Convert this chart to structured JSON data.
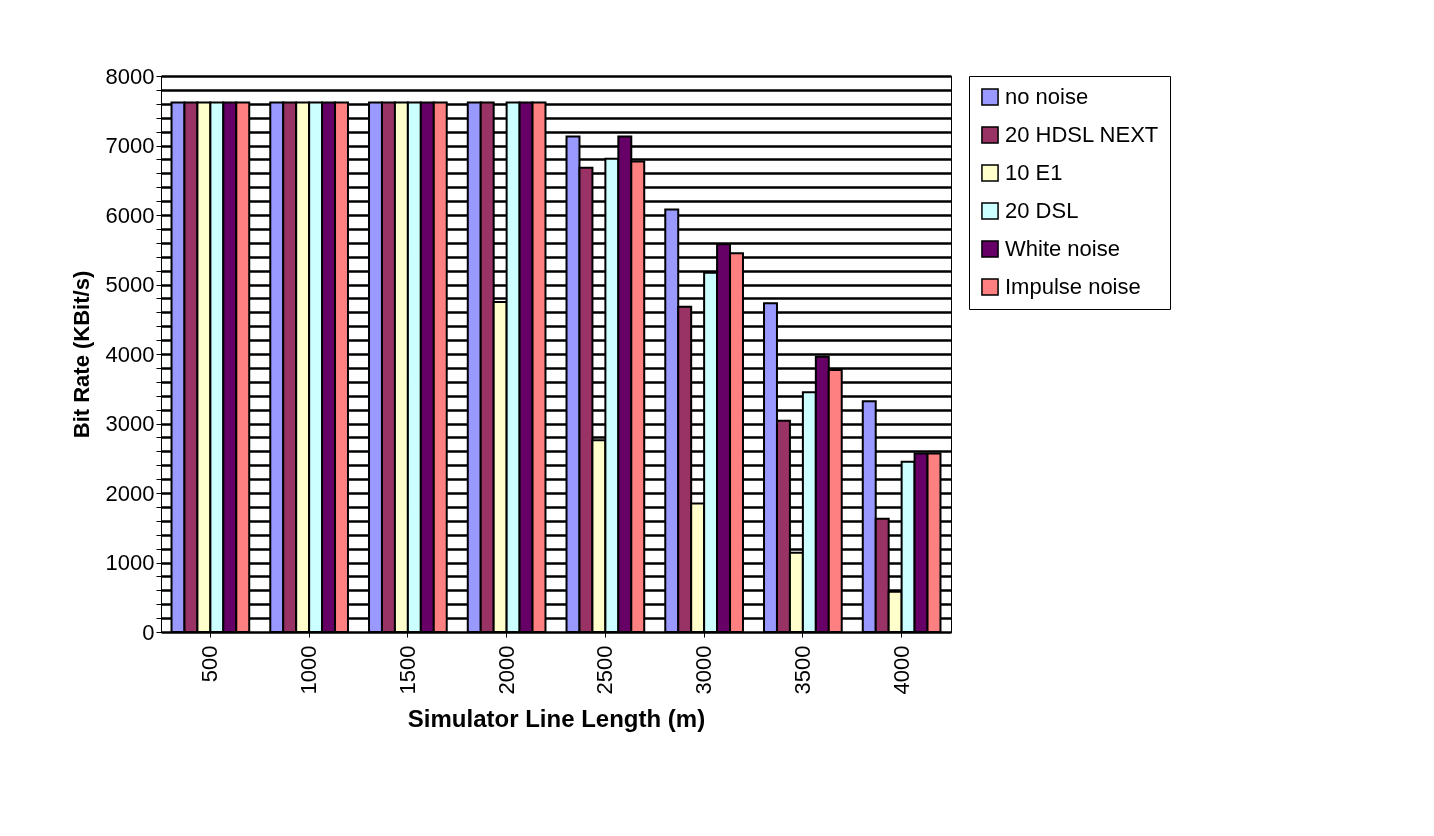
{
  "chart_data": {
    "type": "bar",
    "xlabel": "Simulator Line Length (m)",
    "ylabel": "Bit Rate (KBit/s)",
    "categories": [
      "500",
      "1000",
      "1500",
      "2000",
      "2500",
      "3000",
      "3500",
      "4000"
    ],
    "series": [
      {
        "name": "no noise",
        "color": "#9999ff",
        "values": [
          7620,
          7620,
          7620,
          7620,
          7130,
          6080,
          4730,
          3320
        ]
      },
      {
        "name": "20 HDSL NEXT",
        "color": "#993366",
        "values": [
          7620,
          7620,
          7620,
          7620,
          6680,
          4680,
          3040,
          1630
        ]
      },
      {
        "name": "10 E1",
        "color": "#ffffcc",
        "values": [
          7620,
          7620,
          7620,
          4750,
          2760,
          1850,
          1140,
          580
        ]
      },
      {
        "name": "20 DSL",
        "color": "#ccffff",
        "values": [
          7620,
          7620,
          7620,
          7620,
          6810,
          5170,
          3450,
          2450
        ]
      },
      {
        "name": "White noise",
        "color": "#660066",
        "values": [
          7620,
          7620,
          7620,
          7620,
          7130,
          5580,
          3960,
          2570
        ]
      },
      {
        "name": "Impulse noise",
        "color": "#ff8080",
        "values": [
          7620,
          7620,
          7620,
          7620,
          6770,
          5450,
          3770,
          2570
        ]
      }
    ],
    "ylim": [
      0,
      8000
    ],
    "yticks": [
      0,
      {
        "value": 200,
        "label": null
      },
      {
        "value": 400,
        "label": null
      },
      {
        "value": 600,
        "label": null
      },
      {
        "value": 800,
        "label": null
      },
      1000,
      {
        "value": 1200,
        "label": null
      },
      {
        "value": 1400,
        "label": null
      },
      {
        "value": 1600,
        "label": null
      },
      {
        "value": 1800,
        "label": null
      },
      2000,
      {
        "value": 2200,
        "label": null
      },
      {
        "value": 2400,
        "label": null
      },
      {
        "value": 2600,
        "label": null
      },
      {
        "value": 2800,
        "label": null
      },
      3000,
      {
        "value": 3200,
        "label": null
      },
      {
        "value": 3400,
        "label": null
      },
      {
        "value": 3600,
        "label": null
      },
      {
        "value": 3800,
        "label": null
      },
      4000,
      {
        "value": 4200,
        "label": null
      },
      {
        "value": 4400,
        "label": null
      },
      {
        "value": 4600,
        "label": null
      },
      {
        "value": 4800,
        "label": null
      },
      5000,
      {
        "value": 5200,
        "label": null
      },
      {
        "value": 5400,
        "label": null
      },
      {
        "value": 5600,
        "label": null
      },
      {
        "value": 5800,
        "label": null
      },
      6000,
      {
        "value": 6200,
        "label": null
      },
      {
        "value": 6400,
        "label": null
      },
      {
        "value": 6600,
        "label": null
      },
      {
        "value": 6800,
        "label": null
      },
      7000,
      {
        "value": 7200,
        "label": null
      },
      {
        "value": 7400,
        "label": null
      },
      {
        "value": 7600,
        "label": null
      },
      {
        "value": 7800,
        "label": null
      },
      8000
    ],
    "grid": "y",
    "legend": "right"
  }
}
